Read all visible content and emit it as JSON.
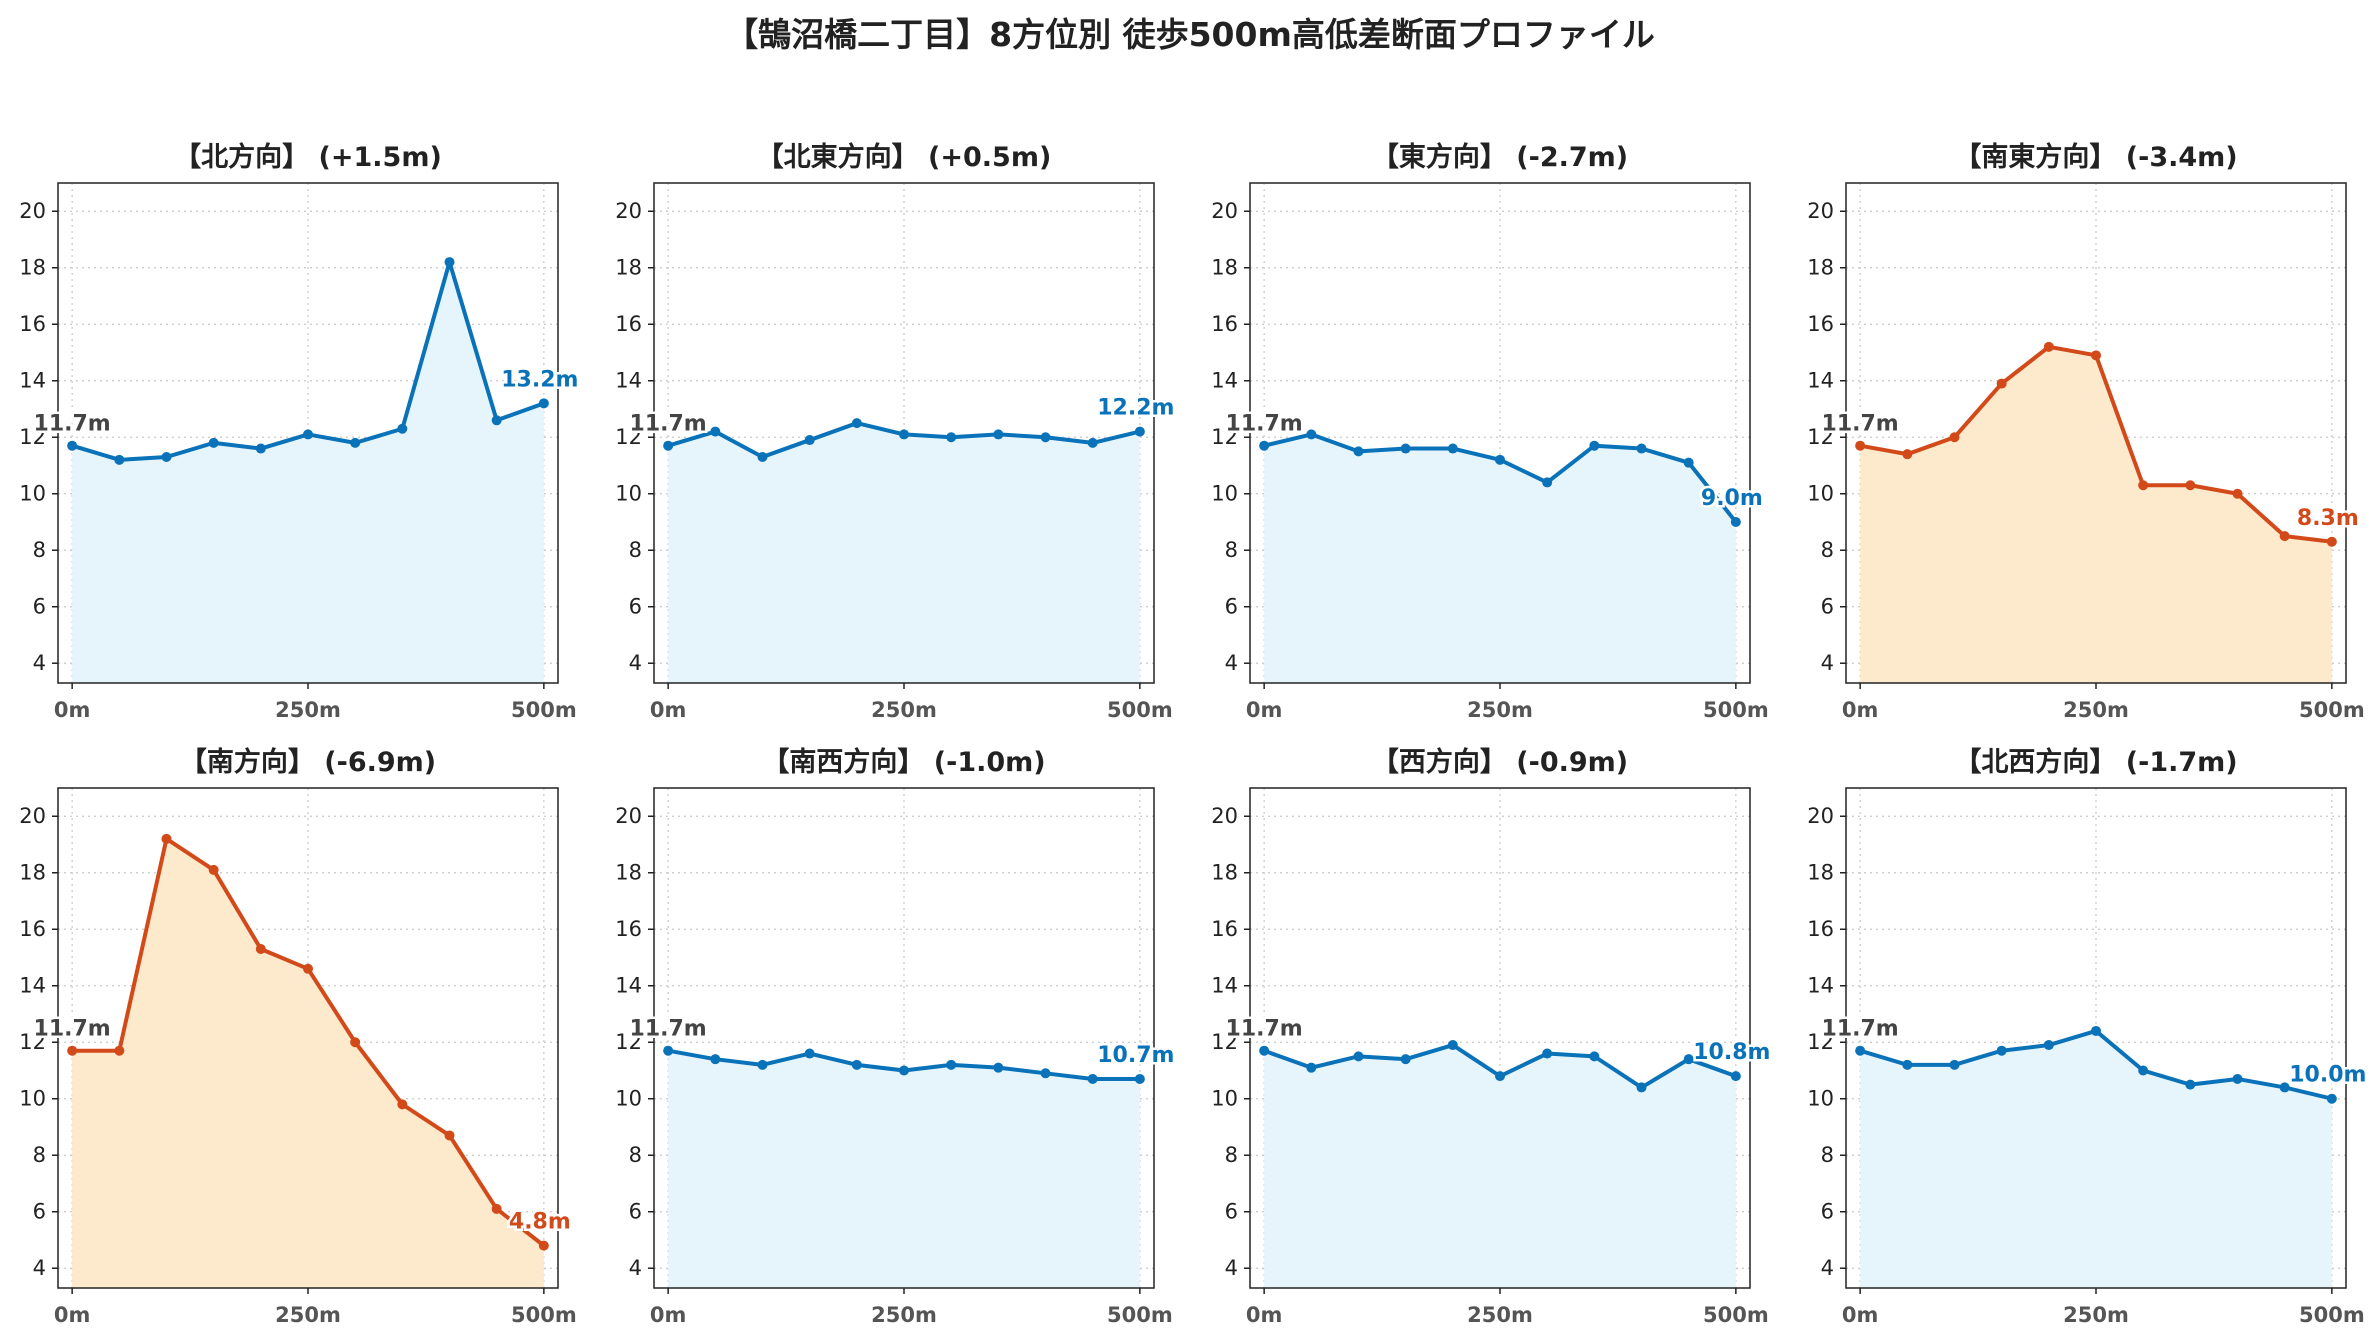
{
  "title": "【鵠沼橋二丁目】8方位別 徒歩500m高低差断面プロファイル",
  "colors": {
    "up_line": "#0a72b8",
    "up_fill": "#e6f5fc",
    "down_line": "#d24a1a",
    "down_fill": "#fde9cc",
    "start_label": "#444444"
  },
  "chart_data": [
    {
      "type": "area",
      "title": "【北方向】 (+1.5m)",
      "trend": "up",
      "x": [
        0,
        50,
        100,
        150,
        200,
        250,
        300,
        350,
        400,
        450,
        500
      ],
      "values": [
        11.7,
        11.2,
        11.3,
        11.8,
        11.6,
        12.1,
        11.8,
        12.3,
        18.2,
        12.6,
        13.2
      ],
      "start_label": "11.7m",
      "end_label": "13.2m",
      "xticks": [
        "0m",
        "250m",
        "500m"
      ],
      "yticks": [
        "4",
        "6",
        "8",
        "10",
        "12",
        "14",
        "16",
        "18",
        "20"
      ],
      "xlim": [
        -15,
        515
      ],
      "ylim": [
        3.3,
        21
      ],
      "grid": true
    },
    {
      "type": "area",
      "title": "【北東方向】 (+0.5m)",
      "trend": "up",
      "x": [
        0,
        50,
        100,
        150,
        200,
        250,
        300,
        350,
        400,
        450,
        500
      ],
      "values": [
        11.7,
        12.2,
        11.3,
        11.9,
        12.5,
        12.1,
        12.0,
        12.1,
        12.0,
        11.8,
        12.2
      ],
      "start_label": "11.7m",
      "end_label": "12.2m",
      "xticks": [
        "0m",
        "250m",
        "500m"
      ],
      "yticks": [
        "4",
        "6",
        "8",
        "10",
        "12",
        "14",
        "16",
        "18",
        "20"
      ],
      "xlim": [
        -15,
        515
      ],
      "ylim": [
        3.3,
        21
      ],
      "grid": true
    },
    {
      "type": "area",
      "title": "【東方向】 (-2.7m)",
      "trend": "up",
      "x": [
        0,
        50,
        100,
        150,
        200,
        250,
        300,
        350,
        400,
        450,
        500
      ],
      "values": [
        11.7,
        12.1,
        11.5,
        11.6,
        11.6,
        11.2,
        10.4,
        11.7,
        11.6,
        11.1,
        9.0
      ],
      "start_label": "11.7m",
      "end_label": "9.0m",
      "xticks": [
        "0m",
        "250m",
        "500m"
      ],
      "yticks": [
        "4",
        "6",
        "8",
        "10",
        "12",
        "14",
        "16",
        "18",
        "20"
      ],
      "xlim": [
        -15,
        515
      ],
      "ylim": [
        3.3,
        21
      ],
      "grid": true
    },
    {
      "type": "area",
      "title": "【南東方向】 (-3.4m)",
      "trend": "down",
      "x": [
        0,
        50,
        100,
        150,
        200,
        250,
        300,
        350,
        400,
        450,
        500
      ],
      "values": [
        11.7,
        11.4,
        12.0,
        13.9,
        15.2,
        14.9,
        10.3,
        10.3,
        10.0,
        8.5,
        8.3
      ],
      "start_label": "11.7m",
      "end_label": "8.3m",
      "xticks": [
        "0m",
        "250m",
        "500m"
      ],
      "yticks": [
        "4",
        "6",
        "8",
        "10",
        "12",
        "14",
        "16",
        "18",
        "20"
      ],
      "xlim": [
        -15,
        515
      ],
      "ylim": [
        3.3,
        21
      ],
      "grid": true
    },
    {
      "type": "area",
      "title": "【南方向】 (-6.9m)",
      "trend": "down",
      "x": [
        0,
        50,
        100,
        150,
        200,
        250,
        300,
        350,
        400,
        450,
        500
      ],
      "values": [
        11.7,
        11.7,
        19.2,
        18.1,
        15.3,
        14.6,
        12.0,
        9.8,
        8.7,
        6.1,
        4.8
      ],
      "start_label": "11.7m",
      "end_label": "4.8m",
      "xticks": [
        "0m",
        "250m",
        "500m"
      ],
      "yticks": [
        "4",
        "6",
        "8",
        "10",
        "12",
        "14",
        "16",
        "18",
        "20"
      ],
      "xlim": [
        -15,
        515
      ],
      "ylim": [
        3.3,
        21
      ],
      "grid": true
    },
    {
      "type": "area",
      "title": "【南西方向】 (-1.0m)",
      "trend": "up",
      "x": [
        0,
        50,
        100,
        150,
        200,
        250,
        300,
        350,
        400,
        450,
        500
      ],
      "values": [
        11.7,
        11.4,
        11.2,
        11.6,
        11.2,
        11.0,
        11.2,
        11.1,
        10.9,
        10.7,
        10.7
      ],
      "start_label": "11.7m",
      "end_label": "10.7m",
      "xticks": [
        "0m",
        "250m",
        "500m"
      ],
      "yticks": [
        "4",
        "6",
        "8",
        "10",
        "12",
        "14",
        "16",
        "18",
        "20"
      ],
      "xlim": [
        -15,
        515
      ],
      "ylim": [
        3.3,
        21
      ],
      "grid": true
    },
    {
      "type": "area",
      "title": "【西方向】 (-0.9m)",
      "trend": "up",
      "x": [
        0,
        50,
        100,
        150,
        200,
        250,
        300,
        350,
        400,
        450,
        500
      ],
      "values": [
        11.7,
        11.1,
        11.5,
        11.4,
        11.9,
        10.8,
        11.6,
        11.5,
        10.4,
        11.4,
        10.8
      ],
      "start_label": "11.7m",
      "end_label": "10.8m",
      "xticks": [
        "0m",
        "250m",
        "500m"
      ],
      "yticks": [
        "4",
        "6",
        "8",
        "10",
        "12",
        "14",
        "16",
        "18",
        "20"
      ],
      "xlim": [
        -15,
        515
      ],
      "ylim": [
        3.3,
        21
      ],
      "grid": true
    },
    {
      "type": "area",
      "title": "【北西方向】 (-1.7m)",
      "trend": "up",
      "x": [
        0,
        50,
        100,
        150,
        200,
        250,
        300,
        350,
        400,
        450,
        500
      ],
      "values": [
        11.7,
        11.2,
        11.2,
        11.7,
        11.9,
        12.4,
        11.0,
        10.5,
        10.7,
        10.4,
        10.0
      ],
      "start_label": "11.7m",
      "end_label": "10.0m",
      "xticks": [
        "0m",
        "250m",
        "500m"
      ],
      "yticks": [
        "4",
        "6",
        "8",
        "10",
        "12",
        "14",
        "16",
        "18",
        "20"
      ],
      "xlim": [
        -15,
        515
      ],
      "ylim": [
        3.3,
        21
      ],
      "grid": true
    }
  ]
}
